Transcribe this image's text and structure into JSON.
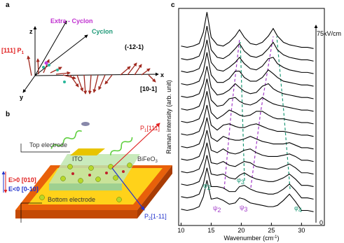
{
  "panel_a": {
    "label": "a",
    "z": "z",
    "x": "x",
    "y": "y",
    "p1": {
      "dir": "[111]",
      "main": "P",
      "sub": "1"
    },
    "extra_cyclon": "Extra - Cyclon",
    "cyclon": "Cyclon",
    "plane": "(-12-1)",
    "x_dir": "[10-1]"
  },
  "panel_b": {
    "label": "b",
    "top_electrode": "Top electrode",
    "ito": "ITO",
    "bfo": {
      "main": "BiFeO",
      "sub": "3"
    },
    "p1": {
      "main": "P",
      "sub": "1",
      "dir": "[111]"
    },
    "p2": {
      "main": "P",
      "sub": "2",
      "dir": "[1-11]"
    },
    "e_pos": "E>0 [010]",
    "e_neg": "E<0 [0-10]",
    "bottom_electrode": "Bottom electrode"
  },
  "chart_data": {
    "type": "line",
    "panel_label": "c",
    "xlabel": {
      "text": "Wavenumber (cm",
      "sup": "-1",
      "end": ")"
    },
    "ylabel": "Raman intensity (arb. unit)",
    "field_axis": {
      "top": "75kV/cm",
      "bottom": "0"
    },
    "xlim": [
      9.6,
      33.8
    ],
    "ylim": [
      0,
      17.3
    ],
    "xticks": [
      10,
      15,
      20,
      25,
      30
    ],
    "x": [
      10,
      11,
      12,
      13,
      13.7,
      14.3,
      15,
      16,
      17,
      18,
      19,
      19.7,
      20.5,
      21.5,
      22.5,
      23.5,
      24.5,
      25.3,
      26,
      27,
      28,
      29,
      30,
      31,
      32
    ],
    "series": [
      {
        "color": "#000000",
        "values": [
          1.3,
          1.2,
          1.3,
          1.5,
          2.3,
          3.6,
          2.1,
          2.2,
          2.0,
          1.7,
          1.8,
          2.2,
          2.1,
          1.8,
          1.7,
          1.6,
          1.5,
          1.5,
          1.6,
          2.0,
          2.5,
          1.9,
          1.2,
          1.2,
          1.1
        ]
      },
      {
        "color": "#000000",
        "values": [
          2.3,
          2.2,
          2.3,
          2.5,
          3.3,
          4.6,
          3.1,
          3.1,
          3.0,
          2.7,
          2.7,
          3.1,
          3.2,
          2.9,
          2.7,
          2.6,
          2.5,
          2.5,
          2.6,
          2.9,
          3.3,
          2.8,
          2.2,
          2.2,
          2.1
        ]
      },
      {
        "color": "#000000",
        "values": [
          3.3,
          3.2,
          3.3,
          3.5,
          4.3,
          5.6,
          4.1,
          4.0,
          4.1,
          3.8,
          3.7,
          4.0,
          4.2,
          3.9,
          3.7,
          3.6,
          3.5,
          3.5,
          3.6,
          3.8,
          4.1,
          3.7,
          3.2,
          3.2,
          3.1
        ]
      },
      {
        "color": "#000000",
        "values": [
          4.3,
          4.2,
          4.3,
          4.5,
          5.3,
          6.6,
          5.0,
          4.9,
          5.1,
          4.8,
          4.7,
          4.9,
          5.1,
          5.0,
          4.7,
          4.6,
          4.5,
          4.5,
          4.5,
          4.7,
          4.9,
          4.6,
          4.2,
          4.2,
          4.1
        ]
      },
      {
        "color": "#000000",
        "values": [
          5.3,
          5.2,
          5.3,
          5.5,
          6.3,
          7.6,
          6.0,
          5.8,
          6.1,
          5.8,
          5.7,
          5.8,
          6.0,
          6.1,
          5.8,
          5.6,
          5.5,
          5.5,
          5.5,
          5.6,
          5.7,
          5.5,
          5.2,
          5.2,
          5.1
        ]
      },
      {
        "color": "#000000",
        "values": [
          6.3,
          6.2,
          6.3,
          6.5,
          7.3,
          8.6,
          7.0,
          6.7,
          7.1,
          6.9,
          6.8,
          6.8,
          6.9,
          7.1,
          6.9,
          6.7,
          6.6,
          6.5,
          6.5,
          6.5,
          6.6,
          6.4,
          6.2,
          6.2,
          6.1
        ]
      },
      {
        "color": "#000000",
        "values": [
          7.3,
          7.2,
          7.3,
          7.5,
          8.3,
          9.6,
          8.0,
          7.6,
          8.0,
          8.1,
          7.9,
          7.8,
          7.8,
          8.0,
          8.1,
          7.9,
          7.7,
          7.6,
          7.5,
          7.5,
          7.4,
          7.3,
          7.2,
          7.2,
          7.1
        ]
      },
      {
        "color": "#000000",
        "values": [
          8.3,
          8.2,
          8.3,
          8.5,
          9.3,
          10.7,
          9.0,
          8.5,
          8.8,
          9.2,
          9.0,
          8.8,
          8.7,
          8.8,
          9.1,
          9.1,
          8.8,
          8.6,
          8.5,
          8.5,
          8.4,
          8.3,
          8.2,
          8.2,
          8.1
        ]
      },
      {
        "color": "#000000",
        "values": [
          9.3,
          9.2,
          9.3,
          9.5,
          10.3,
          11.7,
          10.0,
          9.5,
          9.6,
          10.1,
          10.2,
          9.9,
          9.7,
          9.6,
          9.8,
          10.2,
          9.9,
          9.7,
          9.6,
          9.5,
          9.4,
          9.3,
          9.2,
          9.2,
          9.1
        ]
      },
      {
        "color": "#000000",
        "values": [
          10.3,
          10.2,
          10.3,
          10.5,
          11.3,
          12.7,
          11.0,
          10.4,
          10.5,
          10.8,
          11.3,
          11.0,
          10.7,
          10.5,
          10.6,
          11.1,
          11.3,
          10.9,
          10.7,
          10.5,
          10.4,
          10.3,
          10.2,
          10.2,
          10.1
        ]
      },
      {
        "color": "#000000",
        "values": [
          11.3,
          11.2,
          11.3,
          11.5,
          12.3,
          13.8,
          12.0,
          11.4,
          11.4,
          11.7,
          12.3,
          12.3,
          11.8,
          11.5,
          11.5,
          11.8,
          12.4,
          12.1,
          11.8,
          11.5,
          11.4,
          11.3,
          11.2,
          11.2,
          11.1
        ]
      },
      {
        "color": "#000000",
        "values": [
          12.3,
          12.2,
          12.3,
          12.5,
          13.3,
          14.8,
          13.0,
          12.4,
          12.3,
          12.6,
          13.0,
          13.4,
          12.9,
          12.5,
          12.4,
          12.7,
          13.3,
          13.4,
          12.9,
          12.6,
          12.4,
          12.3,
          12.2,
          12.2,
          12.1
        ]
      },
      {
        "color": "#000000",
        "values": [
          13.3,
          13.2,
          13.3,
          13.5,
          14.3,
          15.9,
          14.0,
          13.4,
          13.3,
          13.6,
          14.1,
          14.5,
          13.9,
          13.5,
          13.4,
          13.6,
          14.1,
          14.6,
          14.0,
          13.6,
          13.4,
          13.3,
          13.2,
          13.2,
          13.1
        ]
      },
      {
        "color": "#000000",
        "values": [
          14.3,
          14.2,
          14.3,
          14.5,
          15.4,
          17.0,
          15.0,
          14.4,
          14.3,
          14.6,
          15.1,
          15.6,
          15.0,
          14.5,
          14.4,
          14.6,
          15.1,
          15.7,
          15.1,
          14.6,
          14.4,
          14.3,
          14.2,
          14.2,
          14.1
        ]
      }
    ],
    "annotations": [
      {
        "text": "φ",
        "sub": "2",
        "color": "#1f9a78"
      },
      {
        "text": "ψ",
        "sub": "2",
        "color": "#a23cc8"
      },
      {
        "text": "φ",
        "sub": "3",
        "color": "#1f9a78"
      },
      {
        "text": "ψ",
        "sub": "3",
        "color": "#a23cc8"
      },
      {
        "text": "φ",
        "sub": "4",
        "color": "#1f9a78"
      }
    ]
  }
}
